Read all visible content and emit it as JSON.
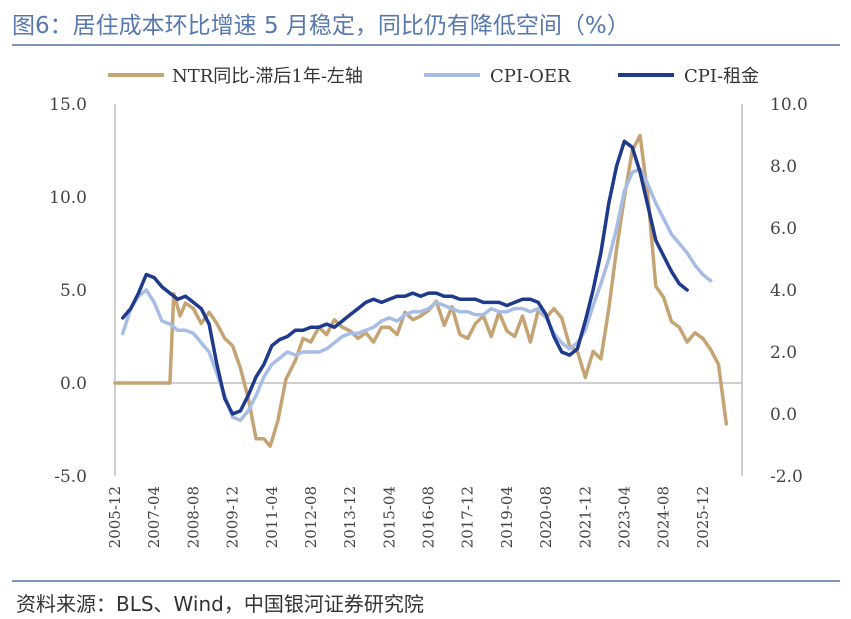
{
  "header": {
    "title": "图6：居住成本环比增速 5 月稳定，同比仍有降低空间（%）"
  },
  "footer": {
    "source": "资料来源：BLS、Wind，中国银河证券研究院"
  },
  "chart_data": {
    "type": "line",
    "title": "",
    "legend_position": "top",
    "grid": false,
    "left_axis": {
      "ylim": [
        -5,
        15
      ],
      "ticks": [
        "-5.0",
        "0.0",
        "5.0",
        "10.0",
        "15.0"
      ]
    },
    "right_axis": {
      "ylim": [
        -2,
        10
      ],
      "ticks": [
        "-2.0",
        "0.0",
        "2.0",
        "4.0",
        "6.0",
        "8.0",
        "10.0"
      ]
    },
    "x_ticks": [
      "2005-12",
      "2007-04",
      "2008-08",
      "2009-12",
      "2011-04",
      "2012-08",
      "2013-12",
      "2015-04",
      "2016-08",
      "2017-12",
      "2019-04",
      "2020-08",
      "2021-12",
      "2023-04",
      "2024-08",
      "2025-12"
    ],
    "series": [
      {
        "name": "NTR同比-滞后1年-左轴",
        "axis": "left",
        "color": "#c4a474",
        "width": 3.5,
        "points": [
          [
            0,
            0
          ],
          [
            4,
            0
          ],
          [
            6,
            0
          ],
          [
            7,
            0
          ],
          [
            7.5,
            4.8
          ],
          [
            8.3,
            3.6
          ],
          [
            9,
            4.3
          ],
          [
            10,
            4.0
          ],
          [
            11,
            3.2
          ],
          [
            12,
            3.8
          ],
          [
            13,
            3.2
          ],
          [
            14,
            2.4
          ],
          [
            15,
            2.0
          ],
          [
            16,
            0.8
          ],
          [
            17,
            -0.8
          ],
          [
            18,
            -3.0
          ],
          [
            19,
            -3.0
          ],
          [
            19.8,
            -3.4
          ],
          [
            20.8,
            -2.0
          ],
          [
            21.8,
            0.2
          ],
          [
            23,
            1.2
          ],
          [
            24,
            2.4
          ],
          [
            25,
            2.2
          ],
          [
            26,
            3.0
          ],
          [
            27,
            2.6
          ],
          [
            28,
            3.4
          ],
          [
            29,
            3.0
          ],
          [
            30,
            2.8
          ],
          [
            31,
            2.4
          ],
          [
            32,
            2.7
          ],
          [
            33,
            2.2
          ],
          [
            34,
            3.0
          ],
          [
            35,
            3.0
          ],
          [
            36,
            2.6
          ],
          [
            37,
            3.8
          ],
          [
            38,
            3.4
          ],
          [
            39,
            3.6
          ],
          [
            40,
            3.9
          ],
          [
            41,
            4.4
          ],
          [
            42,
            3.1
          ],
          [
            43,
            4.1
          ],
          [
            44,
            2.6
          ],
          [
            45,
            2.4
          ],
          [
            46,
            3.2
          ],
          [
            47,
            3.6
          ],
          [
            48,
            2.5
          ],
          [
            49,
            3.8
          ],
          [
            50,
            2.8
          ],
          [
            51,
            2.5
          ],
          [
            52,
            3.6
          ],
          [
            53,
            2.2
          ],
          [
            54,
            3.9
          ],
          [
            55,
            3.5
          ],
          [
            56,
            4.0
          ],
          [
            57,
            3.5
          ],
          [
            58,
            2.0
          ],
          [
            59,
            1.7
          ],
          [
            60,
            0.3
          ],
          [
            61,
            1.7
          ],
          [
            62,
            1.3
          ],
          [
            63,
            4.0
          ],
          [
            64,
            7.2
          ],
          [
            65,
            10.0
          ],
          [
            66,
            12.5
          ],
          [
            67,
            13.3
          ],
          [
            68,
            10.0
          ],
          [
            69,
            5.2
          ],
          [
            70,
            4.6
          ],
          [
            71,
            3.3
          ],
          [
            72,
            3.0
          ],
          [
            73,
            2.2
          ],
          [
            74,
            2.7
          ],
          [
            75,
            2.4
          ],
          [
            76,
            1.8
          ],
          [
            77,
            1.0
          ],
          [
            78,
            -2.2
          ]
        ]
      },
      {
        "name": "CPI-OER",
        "axis": "right",
        "color": "#a8bde4",
        "width": 3.5,
        "points": [
          [
            1,
            2.6
          ],
          [
            2,
            3.4
          ],
          [
            3,
            3.8
          ],
          [
            4,
            4.0
          ],
          [
            5,
            3.6
          ],
          [
            6,
            3.0
          ],
          [
            7,
            2.9
          ],
          [
            8,
            2.7
          ],
          [
            9,
            2.7
          ],
          [
            10,
            2.6
          ],
          [
            11,
            2.3
          ],
          [
            12,
            2.0
          ],
          [
            13,
            1.3
          ],
          [
            14,
            0.6
          ],
          [
            15,
            -0.1
          ],
          [
            16,
            -0.2
          ],
          [
            17,
            0.1
          ],
          [
            18,
            0.6
          ],
          [
            19,
            1.2
          ],
          [
            20,
            1.6
          ],
          [
            21,
            1.8
          ],
          [
            22,
            2.0
          ],
          [
            23,
            1.9
          ],
          [
            24,
            2.0
          ],
          [
            25,
            2.0
          ],
          [
            26,
            2.0
          ],
          [
            27,
            2.1
          ],
          [
            28,
            2.3
          ],
          [
            29,
            2.5
          ],
          [
            30,
            2.6
          ],
          [
            31,
            2.6
          ],
          [
            32,
            2.7
          ],
          [
            33,
            2.8
          ],
          [
            34,
            3.0
          ],
          [
            35,
            3.1
          ],
          [
            36,
            3.0
          ],
          [
            37,
            3.2
          ],
          [
            38,
            3.3
          ],
          [
            39,
            3.3
          ],
          [
            40,
            3.4
          ],
          [
            41,
            3.6
          ],
          [
            42,
            3.5
          ],
          [
            43,
            3.4
          ],
          [
            44,
            3.3
          ],
          [
            45,
            3.3
          ],
          [
            46,
            3.2
          ],
          [
            47,
            3.2
          ],
          [
            48,
            3.4
          ],
          [
            49,
            3.3
          ],
          [
            50,
            3.3
          ],
          [
            51,
            3.4
          ],
          [
            52,
            3.4
          ],
          [
            53,
            3.3
          ],
          [
            54,
            3.4
          ],
          [
            55,
            3.1
          ],
          [
            56,
            2.6
          ],
          [
            57,
            2.3
          ],
          [
            58,
            2.1
          ],
          [
            59,
            2.3
          ],
          [
            60,
            2.7
          ],
          [
            61,
            3.5
          ],
          [
            62,
            4.2
          ],
          [
            63,
            5.0
          ],
          [
            64,
            6.0
          ],
          [
            65,
            7.2
          ],
          [
            66,
            7.8
          ],
          [
            67,
            7.9
          ],
          [
            68,
            7.4
          ],
          [
            69,
            6.8
          ],
          [
            70,
            6.3
          ],
          [
            71,
            5.8
          ],
          [
            72,
            5.5
          ],
          [
            73,
            5.2
          ],
          [
            74,
            4.8
          ],
          [
            75,
            4.5
          ],
          [
            76,
            4.3
          ]
        ]
      },
      {
        "name": "CPI-租金",
        "axis": "right",
        "color": "#1f3a8c",
        "width": 3.5,
        "points": [
          [
            1,
            3.1
          ],
          [
            2,
            3.4
          ],
          [
            3,
            3.9
          ],
          [
            4,
            4.5
          ],
          [
            5,
            4.4
          ],
          [
            6,
            4.1
          ],
          [
            7,
            3.9
          ],
          [
            8,
            3.7
          ],
          [
            9,
            3.8
          ],
          [
            10,
            3.6
          ],
          [
            11,
            3.4
          ],
          [
            12,
            2.9
          ],
          [
            13,
            1.6
          ],
          [
            14,
            0.5
          ],
          [
            15,
            0.0
          ],
          [
            16,
            0.1
          ],
          [
            17,
            0.6
          ],
          [
            18,
            1.2
          ],
          [
            19,
            1.6
          ],
          [
            20,
            2.2
          ],
          [
            21,
            2.4
          ],
          [
            22,
            2.5
          ],
          [
            23,
            2.7
          ],
          [
            24,
            2.7
          ],
          [
            25,
            2.8
          ],
          [
            26,
            2.8
          ],
          [
            27,
            2.9
          ],
          [
            28,
            2.8
          ],
          [
            29,
            3.0
          ],
          [
            30,
            3.2
          ],
          [
            31,
            3.4
          ],
          [
            32,
            3.6
          ],
          [
            33,
            3.7
          ],
          [
            34,
            3.6
          ],
          [
            35,
            3.7
          ],
          [
            36,
            3.8
          ],
          [
            37,
            3.8
          ],
          [
            38,
            3.9
          ],
          [
            39,
            3.8
          ],
          [
            40,
            3.9
          ],
          [
            41,
            3.9
          ],
          [
            42,
            3.8
          ],
          [
            43,
            3.8
          ],
          [
            44,
            3.7
          ],
          [
            45,
            3.7
          ],
          [
            46,
            3.7
          ],
          [
            47,
            3.6
          ],
          [
            48,
            3.6
          ],
          [
            49,
            3.6
          ],
          [
            50,
            3.5
          ],
          [
            51,
            3.6
          ],
          [
            52,
            3.7
          ],
          [
            53,
            3.7
          ],
          [
            54,
            3.6
          ],
          [
            55,
            3.2
          ],
          [
            56,
            2.5
          ],
          [
            57,
            2.0
          ],
          [
            58,
            1.9
          ],
          [
            59,
            2.1
          ],
          [
            60,
            3.0
          ],
          [
            61,
            4.0
          ],
          [
            62,
            5.2
          ],
          [
            63,
            6.8
          ],
          [
            64,
            8.0
          ],
          [
            65,
            8.8
          ],
          [
            66,
            8.6
          ],
          [
            67,
            7.8
          ],
          [
            68,
            6.7
          ],
          [
            69,
            5.6
          ],
          [
            70,
            5.1
          ],
          [
            71,
            4.6
          ],
          [
            72,
            4.2
          ],
          [
            73,
            4.0
          ]
        ]
      }
    ]
  }
}
